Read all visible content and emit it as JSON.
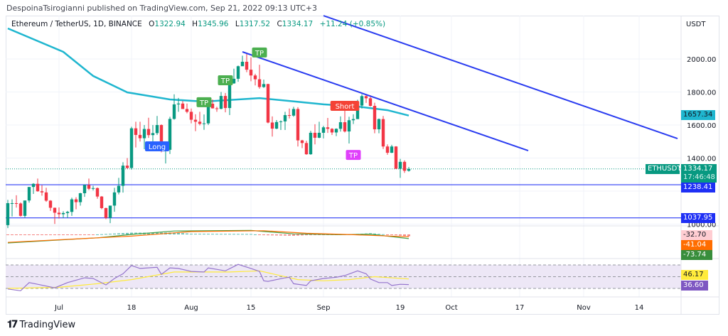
{
  "header": {
    "published": "DespoinaTsirogianni published on TradingView.com, Sep 21, 2022 09:13 UTC+3"
  },
  "legend": {
    "symbol": "Ethereum / TetherUS, 1D, BINANCE",
    "o_label": "O",
    "o": "1322.94",
    "h_label": "H",
    "h": "1345.96",
    "l_label": "L",
    "l": "1317.52",
    "c_label": "C",
    "c": "1334.17",
    "change": "+11.24 (+0.85%)"
  },
  "price_axis": {
    "currency": "USDT",
    "ticks": [
      "2000.00",
      "1800.00",
      "1600.00",
      "1400.00",
      "1000.00"
    ],
    "tick_values": [
      2000,
      1800,
      1600,
      1400,
      1000
    ],
    "ma_tag": "1657.34",
    "symbol_tag": "ETHUSDT",
    "last_price": "1334.17",
    "countdown": "17:46:48",
    "level_1": "1238.41",
    "level_2": "1037.95",
    "macd_hist": "-32.70",
    "macd_signal": "-41.04",
    "macd_line": "-73.74",
    "rsi_ma": "46.17",
    "rsi": "36.60"
  },
  "time_axis": {
    "labels": [
      "Jul",
      "18",
      "Aug",
      "15",
      "Sep",
      "19",
      "Oct",
      "17",
      "Nov",
      "14"
    ],
    "dates": [
      "2022-07-01",
      "2022-07-18",
      "2022-08-01",
      "2022-08-15",
      "2022-09-01",
      "2022-09-19",
      "2022-10-01",
      "2022-10-17",
      "2022-11-01",
      "2022-11-14"
    ]
  },
  "colors": {
    "up": "#089981",
    "down": "#f23645",
    "ma": "#1fb6cf",
    "trendline": "#2a3cf0",
    "level": "#2d3cf5",
    "macd": "#43a047",
    "signal": "#ff6d00",
    "rsi": "#9575cd",
    "rsi_ma": "#ffeb3b",
    "rsi_band": "#ede7f6"
  },
  "logo": {
    "text": "TradingView"
  },
  "chart_data": {
    "type": "candlestick",
    "symbol": "ETHUSDT",
    "interval": "1D",
    "ylim": [
      900,
      2250
    ],
    "grid": true,
    "candles": [
      [
        "2022-06-19",
        994,
        1147,
        976,
        1127
      ],
      [
        "2022-06-20",
        1127,
        1150,
        1046,
        1127
      ],
      [
        "2022-06-21",
        1127,
        1175,
        1100,
        1125
      ],
      [
        "2022-06-22",
        1125,
        1131,
        1045,
        1050
      ],
      [
        "2022-06-23",
        1050,
        1140,
        1040,
        1143
      ],
      [
        "2022-06-24",
        1143,
        1220,
        1130,
        1225
      ],
      [
        "2022-06-25",
        1225,
        1248,
        1183,
        1244
      ],
      [
        "2022-06-26",
        1244,
        1276,
        1196,
        1199
      ],
      [
        "2022-06-27",
        1199,
        1236,
        1172,
        1192
      ],
      [
        "2022-06-28",
        1192,
        1220,
        1135,
        1142
      ],
      [
        "2022-06-29",
        1142,
        1145,
        1080,
        1099
      ],
      [
        "2022-06-30",
        1099,
        1100,
        1001,
        1069
      ],
      [
        "2022-07-01",
        1069,
        1101,
        1034,
        1060
      ],
      [
        "2022-07-02",
        1060,
        1078,
        1036,
        1067
      ],
      [
        "2022-07-03",
        1067,
        1080,
        1037,
        1074
      ],
      [
        "2022-07-04",
        1074,
        1160,
        1050,
        1150
      ],
      [
        "2022-07-05",
        1150,
        1163,
        1090,
        1133
      ],
      [
        "2022-07-06",
        1133,
        1190,
        1112,
        1187
      ],
      [
        "2022-07-07",
        1187,
        1240,
        1165,
        1237
      ],
      [
        "2022-07-08",
        1237,
        1276,
        1206,
        1214
      ],
      [
        "2022-07-09",
        1214,
        1232,
        1204,
        1218
      ],
      [
        "2022-07-10",
        1218,
        1222,
        1154,
        1167
      ],
      [
        "2022-07-11",
        1167,
        1170,
        1090,
        1097
      ],
      [
        "2022-07-12",
        1097,
        1100,
        1030,
        1038
      ],
      [
        "2022-07-13",
        1038,
        1112,
        1006,
        1112
      ],
      [
        "2022-07-14",
        1112,
        1220,
        1075,
        1192
      ],
      [
        "2022-07-15",
        1192,
        1280,
        1180,
        1232
      ],
      [
        "2022-07-16",
        1232,
        1375,
        1191,
        1354
      ],
      [
        "2022-07-17",
        1354,
        1400,
        1335,
        1340
      ],
      [
        "2022-07-18",
        1340,
        1590,
        1330,
        1580
      ],
      [
        "2022-07-19",
        1580,
        1620,
        1464,
        1540
      ],
      [
        "2022-07-20",
        1540,
        1620,
        1500,
        1520
      ],
      [
        "2022-07-21",
        1520,
        1600,
        1454,
        1576
      ],
      [
        "2022-07-22",
        1576,
        1644,
        1522,
        1539
      ],
      [
        "2022-07-23",
        1539,
        1600,
        1500,
        1551
      ],
      [
        "2022-07-24",
        1551,
        1655,
        1540,
        1600
      ],
      [
        "2022-07-25",
        1600,
        1604,
        1435,
        1441
      ],
      [
        "2022-07-26",
        1441,
        1464,
        1367,
        1450
      ],
      [
        "2022-07-27",
        1450,
        1650,
        1425,
        1637
      ],
      [
        "2022-07-28",
        1637,
        1786,
        1632,
        1725
      ],
      [
        "2022-07-29",
        1725,
        1764,
        1680,
        1730
      ],
      [
        "2022-07-30",
        1730,
        1745,
        1700,
        1697
      ],
      [
        "2022-07-31",
        1697,
        1730,
        1671,
        1680
      ],
      [
        "2022-08-01",
        1680,
        1700,
        1610,
        1632
      ],
      [
        "2022-08-02",
        1632,
        1665,
        1563,
        1620
      ],
      [
        "2022-08-03",
        1620,
        1680,
        1598,
        1607
      ],
      [
        "2022-08-04",
        1607,
        1664,
        1571,
        1610
      ],
      [
        "2022-08-05",
        1610,
        1735,
        1600,
        1729
      ],
      [
        "2022-08-06",
        1729,
        1755,
        1700,
        1701
      ],
      [
        "2022-08-07",
        1701,
        1710,
        1680,
        1698
      ],
      [
        "2022-08-08",
        1698,
        1800,
        1695,
        1776
      ],
      [
        "2022-08-09",
        1776,
        1794,
        1677,
        1703
      ],
      [
        "2022-08-10",
        1703,
        1870,
        1660,
        1852
      ],
      [
        "2022-08-11",
        1852,
        1941,
        1850,
        1880
      ],
      [
        "2022-08-12",
        1880,
        1960,
        1862,
        1956
      ],
      [
        "2022-08-13",
        1956,
        2020,
        1957,
        1983
      ],
      [
        "2022-08-14",
        1983,
        2030,
        1920,
        1935
      ],
      [
        "2022-08-15",
        1935,
        2010,
        1865,
        1900
      ],
      [
        "2022-08-16",
        1900,
        1910,
        1840,
        1877
      ],
      [
        "2022-08-17",
        1877,
        1965,
        1820,
        1830
      ],
      [
        "2022-08-18",
        1830,
        1875,
        1825,
        1848
      ],
      [
        "2022-08-19",
        1848,
        1850,
        1610,
        1615
      ],
      [
        "2022-08-20",
        1615,
        1652,
        1530,
        1578
      ],
      [
        "2022-08-21",
        1578,
        1630,
        1575,
        1618
      ],
      [
        "2022-08-22",
        1618,
        1628,
        1570,
        1622
      ],
      [
        "2022-08-23",
        1622,
        1680,
        1570,
        1660
      ],
      [
        "2022-08-24",
        1660,
        1700,
        1640,
        1657
      ],
      [
        "2022-08-25",
        1657,
        1710,
        1650,
        1697
      ],
      [
        "2022-08-26",
        1697,
        1708,
        1470,
        1507
      ],
      [
        "2022-08-27",
        1507,
        1510,
        1460,
        1491
      ],
      [
        "2022-08-28",
        1491,
        1505,
        1420,
        1423
      ],
      [
        "2022-08-29",
        1423,
        1565,
        1420,
        1553
      ],
      [
        "2022-08-30",
        1553,
        1605,
        1483,
        1523
      ],
      [
        "2022-08-31",
        1523,
        1620,
        1520,
        1553
      ],
      [
        "2022-09-01",
        1553,
        1595,
        1519,
        1586
      ],
      [
        "2022-09-02",
        1586,
        1643,
        1552,
        1577
      ],
      [
        "2022-09-03",
        1577,
        1581,
        1540,
        1555
      ],
      [
        "2022-09-04",
        1555,
        1580,
        1533,
        1577
      ],
      [
        "2022-09-05",
        1577,
        1652,
        1560,
        1617
      ],
      [
        "2022-09-06",
        1617,
        1689,
        1555,
        1561
      ],
      [
        "2022-09-07",
        1561,
        1650,
        1488,
        1629
      ],
      [
        "2022-09-08",
        1629,
        1665,
        1606,
        1636
      ],
      [
        "2022-09-09",
        1636,
        1753,
        1636,
        1718
      ],
      [
        "2022-09-10",
        1718,
        1786,
        1700,
        1775
      ],
      [
        "2022-09-11",
        1775,
        1785,
        1734,
        1762
      ],
      [
        "2022-09-12",
        1762,
        1780,
        1712,
        1716
      ],
      [
        "2022-09-13",
        1716,
        1735,
        1550,
        1574
      ],
      [
        "2022-09-14",
        1574,
        1640,
        1550,
        1636
      ],
      [
        "2022-09-15",
        1636,
        1655,
        1455,
        1470
      ],
      [
        "2022-09-16",
        1470,
        1483,
        1420,
        1432
      ],
      [
        "2022-09-17",
        1432,
        1480,
        1430,
        1470
      ],
      [
        "2022-09-18",
        1470,
        1472,
        1334,
        1335
      ],
      [
        "2022-09-19",
        1335,
        1395,
        1280,
        1377
      ],
      [
        "2022-09-20",
        1377,
        1386,
        1310,
        1323
      ],
      [
        "2022-09-21",
        1322.94,
        1345.96,
        1317.52,
        1334.17
      ]
    ],
    "moving_average": [
      [
        "2022-06-19",
        2185
      ],
      [
        "2022-07-02",
        2043
      ],
      [
        "2022-07-09",
        1897
      ],
      [
        "2022-07-17",
        1798
      ],
      [
        "2022-07-27",
        1755
      ],
      [
        "2022-08-04",
        1742
      ],
      [
        "2022-08-17",
        1763
      ],
      [
        "2022-08-24",
        1746
      ],
      [
        "2022-09-01",
        1725
      ],
      [
        "2022-09-09",
        1712
      ],
      [
        "2022-09-16",
        1690
      ],
      [
        "2022-09-21",
        1657.34
      ]
    ],
    "trendlines": [
      {
        "from": [
          "2022-08-13",
          2043
        ],
        "to": [
          "2022-10-19",
          1445
        ]
      },
      {
        "from": [
          "2022-09-01",
          2262
        ],
        "to": [
          "2022-11-23",
          1518
        ]
      }
    ],
    "horizontal_levels": [
      1238.41,
      1037.95
    ],
    "annotations": [
      {
        "text": "TP",
        "date": "2022-08-04",
        "price": 1738,
        "color": "#4caf50"
      },
      {
        "text": "TP",
        "date": "2022-08-09",
        "price": 1871,
        "color": "#4caf50"
      },
      {
        "text": "TP",
        "date": "2022-08-17",
        "price": 2039,
        "color": "#4caf50"
      },
      {
        "text": "Long",
        "date": "2022-07-24",
        "price": 1471,
        "color": "#2962ff"
      },
      {
        "text": "Short",
        "date": "2022-09-06",
        "price": 1716,
        "color": "#f44336"
      },
      {
        "text": "TP",
        "date": "2022-09-08",
        "price": 1419,
        "color": "#e040fb"
      }
    ],
    "macd": {
      "macd_line": [
        [
          "2022-06-19",
          -150
        ],
        [
          "2022-07-10",
          -60
        ],
        [
          "2022-07-18",
          0
        ],
        [
          "2022-07-28",
          60
        ],
        [
          "2022-08-15",
          70
        ],
        [
          "2022-08-25",
          10
        ],
        [
          "2022-09-05",
          -5
        ],
        [
          "2022-09-12",
          5
        ],
        [
          "2022-09-21",
          -73.74
        ]
      ],
      "signal_line": [
        [
          "2022-06-19",
          -140
        ],
        [
          "2022-07-18",
          -30
        ],
        [
          "2022-08-01",
          50
        ],
        [
          "2022-08-18",
          65
        ],
        [
          "2022-08-28",
          20
        ],
        [
          "2022-09-08",
          -5
        ],
        [
          "2022-09-21",
          -41.04
        ]
      ]
    },
    "rsi": {
      "bands": [
        70,
        50,
        30
      ],
      "rsi_line": [
        [
          "2022-06-19",
          29
        ],
        [
          "2022-06-22",
          26
        ],
        [
          "2022-06-24",
          40
        ],
        [
          "2022-06-26",
          37
        ],
        [
          "2022-06-30",
          31
        ],
        [
          "2022-07-03",
          40
        ],
        [
          "2022-07-07",
          48
        ],
        [
          "2022-07-09",
          47
        ],
        [
          "2022-07-12",
          36
        ],
        [
          "2022-07-14",
          47
        ],
        [
          "2022-07-16",
          55
        ],
        [
          "2022-07-18",
          69
        ],
        [
          "2022-07-20",
          64
        ],
        [
          "2022-07-24",
          66
        ],
        [
          "2022-07-25",
          54
        ],
        [
          "2022-07-27",
          65
        ],
        [
          "2022-07-29",
          64
        ],
        [
          "2022-08-01",
          59
        ],
        [
          "2022-08-04",
          58
        ],
        [
          "2022-08-05",
          65
        ],
        [
          "2022-08-09",
          60
        ],
        [
          "2022-08-12",
          71
        ],
        [
          "2022-08-15",
          64
        ],
        [
          "2022-08-17",
          59
        ],
        [
          "2022-08-18",
          43
        ],
        [
          "2022-08-19",
          42
        ],
        [
          "2022-08-23",
          48
        ],
        [
          "2022-08-24",
          49
        ],
        [
          "2022-08-25",
          38
        ],
        [
          "2022-08-28",
          35
        ],
        [
          "2022-08-29",
          43
        ],
        [
          "2022-09-01",
          47
        ],
        [
          "2022-09-04",
          49
        ],
        [
          "2022-09-06",
          52
        ],
        [
          "2022-09-09",
          60
        ],
        [
          "2022-09-11",
          55
        ],
        [
          "2022-09-12",
          46
        ],
        [
          "2022-09-14",
          40
        ],
        [
          "2022-09-16",
          40
        ],
        [
          "2022-09-17",
          35
        ],
        [
          "2022-09-19",
          37
        ],
        [
          "2022-09-21",
          36.6
        ]
      ],
      "rsi_ma": [
        [
          "2022-06-19",
          30
        ],
        [
          "2022-07-01",
          32
        ],
        [
          "2022-07-10",
          38
        ],
        [
          "2022-07-18",
          45
        ],
        [
          "2022-07-28",
          58
        ],
        [
          "2022-08-10",
          58
        ],
        [
          "2022-08-17",
          60
        ],
        [
          "2022-08-26",
          45
        ],
        [
          "2022-09-01",
          43
        ],
        [
          "2022-09-07",
          45
        ],
        [
          "2022-09-13",
          50
        ],
        [
          "2022-09-21",
          46.17
        ]
      ]
    }
  }
}
